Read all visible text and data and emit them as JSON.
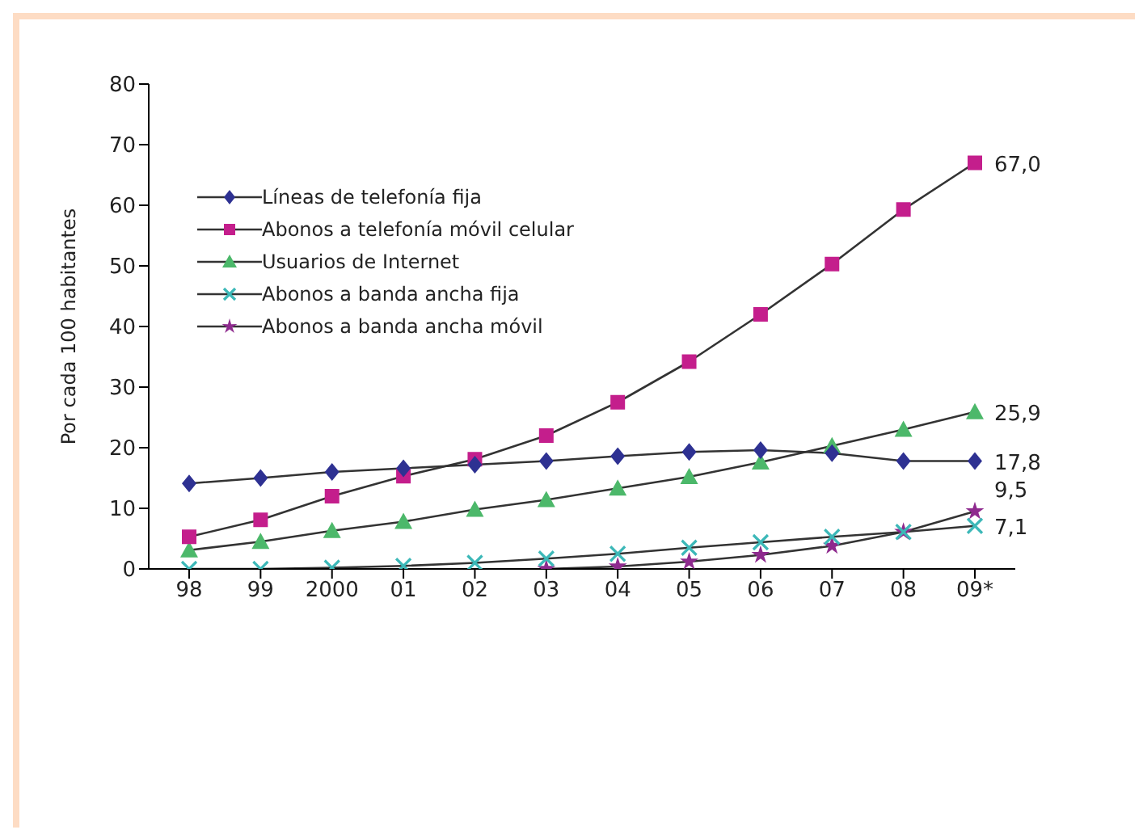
{
  "chart_data": {
    "type": "line",
    "ylabel": "Por cada 100 habitantes",
    "categories": [
      "98",
      "99",
      "2000",
      "01",
      "02",
      "03",
      "04",
      "05",
      "06",
      "07",
      "08",
      "09*"
    ],
    "ylim": [
      0,
      80
    ],
    "yticks": [
      0,
      10,
      20,
      30,
      40,
      50,
      60,
      70,
      80
    ],
    "grid": false,
    "legend": "top left",
    "line_style": "solid",
    "series": [
      {
        "name": "Líneas de telefonía fija",
        "color": "#2e3192",
        "marker": "diamond",
        "values": [
          14.1,
          15,
          16,
          16.6,
          17.2,
          17.8,
          18.6,
          19.3,
          19.6,
          19.1,
          17.8,
          17.8
        ],
        "value_labels": [
          null,
          null,
          null,
          null,
          null,
          null,
          null,
          null,
          null,
          null,
          null,
          "17,8"
        ]
      },
      {
        "name": "Abonos a telefonía móvil celular",
        "color": "#c41e8c",
        "marker": "square",
        "values": [
          5.3,
          8.1,
          12,
          15.3,
          18.1,
          22,
          27.5,
          34.2,
          42,
          50.3,
          59.3,
          67.0
        ],
        "value_labels": [
          null,
          null,
          null,
          null,
          null,
          null,
          null,
          null,
          null,
          null,
          null,
          "67,0"
        ]
      },
      {
        "name": "Usuarios de Internet",
        "color": "#4cb86a",
        "marker": "triangle",
        "values": [
          3.1,
          4.5,
          6.3,
          7.8,
          9.8,
          11.4,
          13.3,
          15.2,
          17.6,
          20.3,
          23,
          25.9
        ],
        "value_labels": [
          null,
          null,
          null,
          null,
          null,
          null,
          null,
          null,
          null,
          null,
          null,
          "25,9"
        ]
      },
      {
        "name": "Abonos a banda ancha fija",
        "color": "#3cb8b8",
        "marker": "cross",
        "values": [
          0,
          0,
          0.2,
          0.5,
          1.0,
          1.7,
          2.5,
          3.5,
          4.4,
          5.3,
          6.1,
          7.1
        ],
        "value_labels": [
          null,
          null,
          null,
          null,
          null,
          null,
          null,
          null,
          null,
          null,
          null,
          "7,1"
        ]
      },
      {
        "name": "Abonos a banda ancha móvil",
        "color": "#8e2a8e",
        "marker": "star",
        "values": [
          null,
          null,
          null,
          null,
          null,
          0,
          0.4,
          1.2,
          2.3,
          3.8,
          6.1,
          9.5
        ],
        "value_labels": [
          null,
          null,
          null,
          null,
          null,
          null,
          null,
          null,
          null,
          null,
          null,
          "9,5"
        ]
      }
    ]
  }
}
